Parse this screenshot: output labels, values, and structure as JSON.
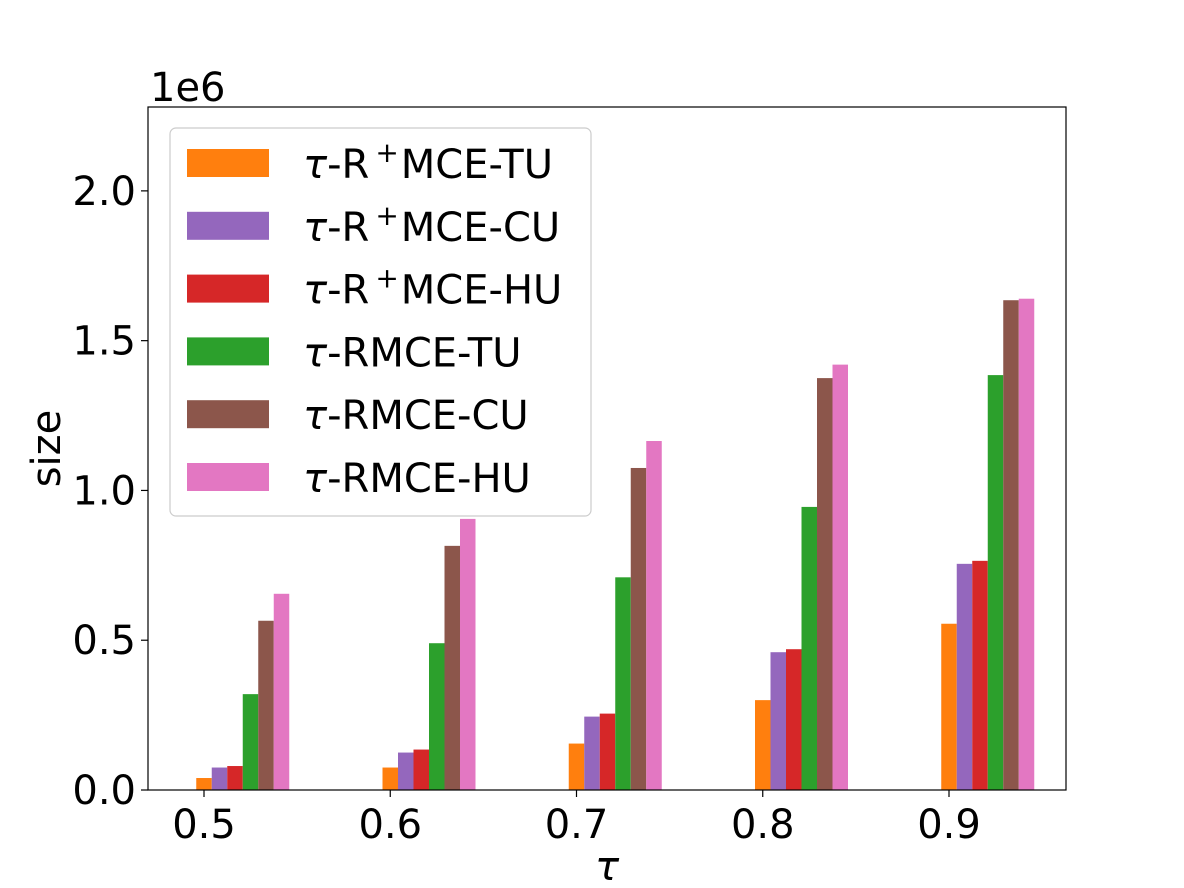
{
  "chart_data": {
    "type": "bar",
    "xlabel": "τ",
    "ylabel": "size",
    "y_offset_label": "1e6",
    "categories": [
      "0.5",
      "0.6",
      "0.7",
      "0.8",
      "0.9"
    ],
    "ylim": [
      0,
      2.28
    ],
    "yticks": [
      "0.0",
      "0.5",
      "1.0",
      "1.5",
      "2.0"
    ],
    "ytick_values": [
      0,
      0.5,
      1.0,
      1.5,
      2.0
    ],
    "grid": false,
    "legend_position": "top-left",
    "series": [
      {
        "name": "τ-R⁺MCE-TU",
        "name_parts": [
          "τ",
          "-R",
          "+",
          "MCE-TU"
        ],
        "color": "#ff7f0e",
        "values": [
          0.04,
          0.075,
          0.155,
          0.3,
          0.555
        ]
      },
      {
        "name": "τ-R⁺MCE-CU",
        "name_parts": [
          "τ",
          "-R",
          "+",
          "MCE-CU"
        ],
        "color": "#9467bd",
        "values": [
          0.075,
          0.125,
          0.245,
          0.46,
          0.755
        ]
      },
      {
        "name": "τ-R⁺MCE-HU",
        "name_parts": [
          "τ",
          "-R",
          "+",
          "MCE-HU"
        ],
        "color": "#d62728",
        "values": [
          0.08,
          0.135,
          0.255,
          0.47,
          0.765
        ]
      },
      {
        "name": "τ-RMCE-TU",
        "name_parts": [
          "τ",
          "-RMCE-TU",
          "",
          ""
        ],
        "color": "#2ca02c",
        "values": [
          0.32,
          0.49,
          0.71,
          0.945,
          1.385
        ]
      },
      {
        "name": "τ-RMCE-CU",
        "name_parts": [
          "τ",
          "-RMCE-CU",
          "",
          ""
        ],
        "color": "#8c564b",
        "values": [
          0.565,
          0.815,
          1.075,
          1.375,
          1.635
        ]
      },
      {
        "name": "τ-RMCE-HU",
        "name_parts": [
          "τ",
          "-RMCE-HU",
          "",
          ""
        ],
        "color": "#e377c2",
        "values": [
          0.655,
          0.905,
          1.165,
          1.42,
          1.64
        ]
      }
    ]
  }
}
